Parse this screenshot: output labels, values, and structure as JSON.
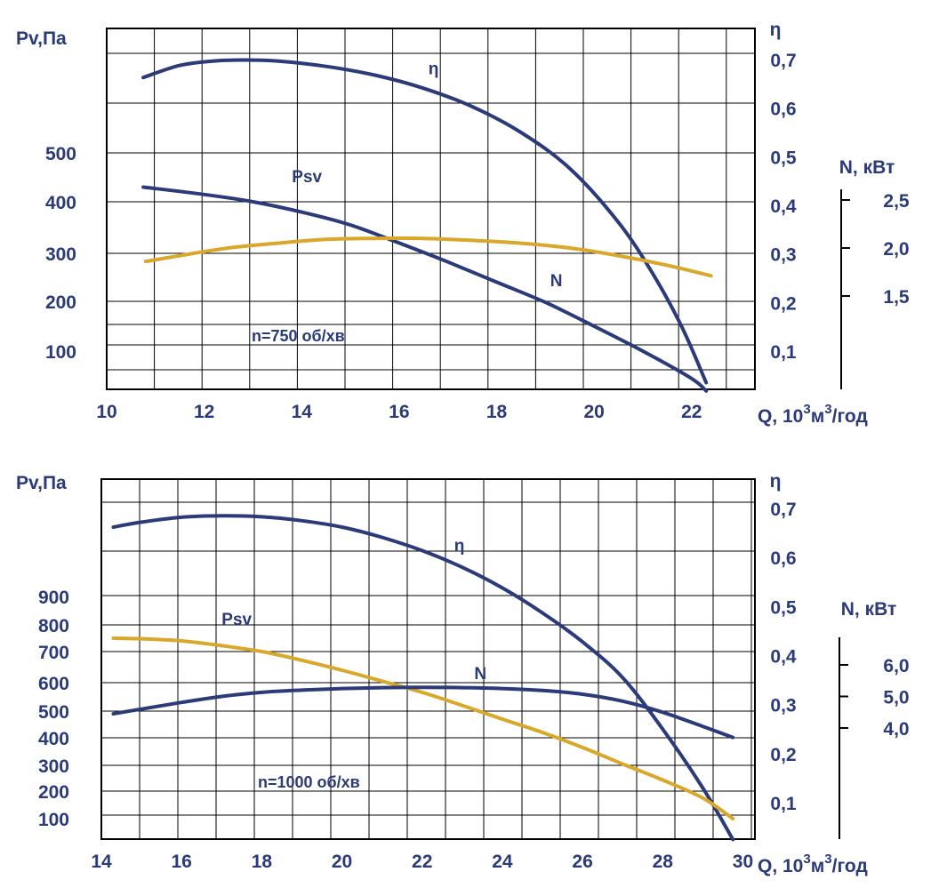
{
  "colors": {
    "blue": "#2b3a78",
    "gold": "#d9a82a",
    "text": "#2b3a78"
  },
  "chart_data": [
    {
      "type": "line",
      "title": "",
      "annotation": "n=750 об/хв",
      "xlabel": {
        "pre": "Q, 10",
        "sup1": "3",
        "mid": "м",
        "sup2": "3",
        "post": "/год"
      },
      "ylabel_left": "Pv,Па",
      "ylabel_eta": "η",
      "ylabel_N": "N, кВт",
      "xlim": [
        10,
        23.3
      ],
      "x_ticks": [
        10,
        12,
        14,
        16,
        18,
        20,
        22
      ],
      "y_left_ticks": [
        100,
        200,
        300,
        400,
        500
      ],
      "y_left_map": [
        [
          100,
          395
        ],
        [
          200,
          339
        ],
        [
          300,
          285
        ],
        [
          400,
          227
        ],
        [
          500,
          172
        ]
      ],
      "eta_ticks": [
        "0,1",
        "0,2",
        "0,3",
        "0,4",
        "0,5",
        "0,6",
        "0,7"
      ],
      "eta_map": [
        [
          0.1,
          395
        ],
        [
          0.7,
          67
        ]
      ],
      "N_ticks": [
        "1,5",
        "2,0",
        "2,5"
      ],
      "N_map": [
        [
          1.5,
          333
        ],
        [
          2.5,
          225
        ]
      ],
      "series": [
        {
          "name": "η",
          "axis": "eta",
          "color": "blue",
          "x": [
            10.75,
            11.5,
            12.2,
            12.8,
            13.5,
            14.5,
            15.5,
            16.5,
            17.5,
            18.5,
            19.5,
            20.5,
            21.2,
            21.8,
            22.3
          ],
          "y": [
            0.663,
            0.688,
            0.697,
            0.699,
            0.697,
            0.686,
            0.668,
            0.641,
            0.603,
            0.55,
            0.476,
            0.365,
            0.26,
            0.15,
            0.035
          ]
        },
        {
          "name": "Psv",
          "axis": "left",
          "color": "blue",
          "x": [
            10.75,
            12,
            13,
            14,
            15,
            16,
            17,
            18,
            19,
            20,
            21,
            22,
            22.3
          ],
          "y": [
            430,
            415,
            400,
            380,
            355,
            320,
            282,
            240,
            198,
            150,
            100,
            45,
            20
          ]
        },
        {
          "name": "N",
          "axis": "N",
          "color": "gold",
          "x": [
            10.8,
            11.5,
            12.5,
            13.5,
            14.5,
            15.5,
            16.5,
            17.5,
            18.5,
            19.5,
            20.5,
            21.5,
            22.4
          ],
          "y": [
            1.86,
            1.92,
            2.0,
            2.05,
            2.09,
            2.1,
            2.1,
            2.08,
            2.05,
            2.0,
            1.92,
            1.82,
            1.71
          ]
        }
      ],
      "series_labels": [
        {
          "text": "η",
          "x": 16.6,
          "y": 0.67,
          "axis": "eta"
        },
        {
          "text": "Psv",
          "x": 13.8,
          "y": 440,
          "axis": "left"
        },
        {
          "text": "N",
          "x": 19.1,
          "y": 1.6,
          "axis": "N"
        }
      ]
    },
    {
      "type": "line",
      "title": "",
      "annotation": "n=1000 об/хв",
      "xlabel": {
        "pre": "Q, 10",
        "sup1": "3",
        "mid": "м",
        "sup2": "3",
        "post": "/год"
      },
      "ylabel_left": "Pv,Па",
      "ylabel_eta": "η",
      "ylabel_N": "N, кВт",
      "xlim": [
        14,
        30.3
      ],
      "x_ticks": [
        14,
        16,
        18,
        20,
        22,
        24,
        26,
        28,
        30
      ],
      "y_left_ticks": [
        100,
        200,
        300,
        400,
        500,
        600,
        700,
        800,
        900
      ],
      "y_left_map": [
        [
          100,
          921
        ],
        [
          200,
          890
        ],
        [
          300,
          861
        ],
        [
          400,
          830
        ],
        [
          500,
          800
        ],
        [
          600,
          768
        ],
        [
          700,
          733
        ],
        [
          800,
          703
        ],
        [
          900,
          671
        ]
      ],
      "eta_ticks": [
        "0,1",
        "0,2",
        "0,3",
        "0,4",
        "0,5",
        "0,6",
        "0,7"
      ],
      "eta_map": [
        [
          0.1,
          903
        ],
        [
          0.7,
          572
        ]
      ],
      "N_ticks": [
        "4,0",
        "5,0",
        "6,0"
      ],
      "N_map": [
        [
          4.0,
          819
        ],
        [
          6.0,
          748
        ]
      ],
      "series": [
        {
          "name": "η",
          "axis": "eta",
          "color": "blue",
          "x": [
            14.3,
            15,
            16,
            17,
            18,
            19,
            20,
            21,
            22,
            23,
            24,
            25,
            26,
            27,
            28,
            29,
            29.75
          ],
          "y": [
            0.662,
            0.672,
            0.682,
            0.685,
            0.683,
            0.675,
            0.662,
            0.641,
            0.614,
            0.58,
            0.538,
            0.487,
            0.428,
            0.355,
            0.25,
            0.13,
            0.025
          ]
        },
        {
          "name": "Psv",
          "axis": "left",
          "color": "gold",
          "x": [
            14.3,
            15,
            16,
            17,
            18,
            19,
            20,
            21,
            22,
            23,
            24,
            25,
            26,
            27,
            28,
            29,
            29.75
          ],
          "y": [
            750,
            748,
            740,
            722,
            700,
            672,
            640,
            605,
            566,
            520,
            470,
            420,
            365,
            305,
            243,
            175,
            100
          ]
        },
        {
          "name": "N",
          "axis": "N",
          "color": "blue",
          "x": [
            14.3,
            15,
            16,
            17,
            18,
            19,
            20,
            21,
            22,
            23,
            24,
            25,
            26,
            27,
            28,
            29,
            29.75
          ],
          "y": [
            4.45,
            4.6,
            4.81,
            5.0,
            5.13,
            5.2,
            5.25,
            5.28,
            5.29,
            5.28,
            5.25,
            5.19,
            5.07,
            4.85,
            4.5,
            4.05,
            3.7
          ]
        }
      ],
      "series_labels": [
        {
          "text": "η",
          "x": 22.8,
          "y": 0.613,
          "axis": "eta"
        },
        {
          "text": "Psv",
          "x": 17,
          "y": 800,
          "axis": "left"
        },
        {
          "text": "N",
          "x": 23.3,
          "y": 5.55,
          "axis": "N"
        }
      ]
    }
  ]
}
